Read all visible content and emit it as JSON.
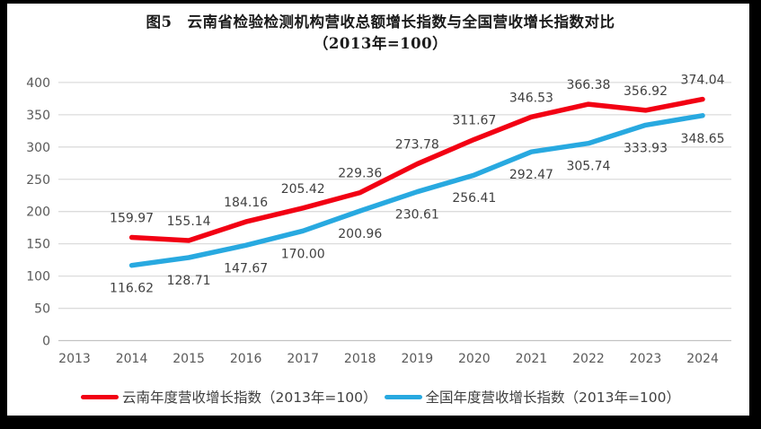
{
  "title": {
    "line1": "图5　云南省检验检测机构营收总额增长指数与全国营收增长指数对比",
    "line2": "（2013年=100）"
  },
  "chart_data": {
    "type": "line",
    "x": [
      "2013",
      "2014",
      "2015",
      "2016",
      "2017",
      "2018",
      "2019",
      "2020",
      "2021",
      "2022",
      "2023",
      "2024"
    ],
    "series": [
      {
        "name": "云南年度营收增长指数（2013年=100）",
        "color": "#f20013",
        "label_position": "above",
        "values": [
          null,
          159.97,
          155.14,
          184.16,
          205.42,
          229.36,
          273.78,
          311.67,
          346.53,
          366.38,
          356.92,
          374.04
        ]
      },
      {
        "name": "全国年度营收增长指数（2013年=100）",
        "color": "#28a9e0",
        "label_position": "below",
        "values": [
          null,
          116.62,
          128.71,
          147.67,
          170.0,
          200.96,
          230.61,
          256.41,
          292.47,
          305.74,
          333.93,
          348.65
        ]
      }
    ],
    "ylim": [
      0,
      400
    ],
    "ytick_step": 50,
    "grid": true,
    "legend_position": "bottom",
    "data_labels": true
  },
  "colors": {
    "gridline": "#dcdcdc",
    "axis_line": "#c3c3c3",
    "axis_label": "#595959",
    "data_label": "#404040",
    "frame_border": "#000000",
    "background": "#ffffff"
  }
}
